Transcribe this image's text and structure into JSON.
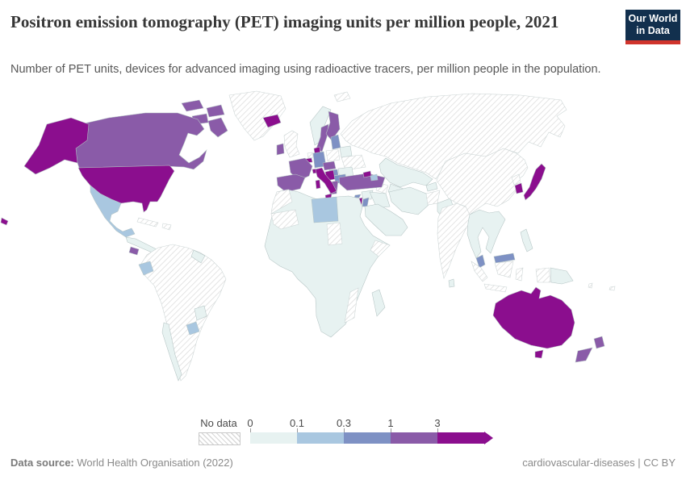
{
  "header": {
    "title": "Positron emission tomography (PET) imaging units per million people, 2021",
    "subtitle": "Number of PET units, devices for advanced imaging using radioactive tracers, per million people in the population.",
    "logo": {
      "line1": "Our World",
      "line2": "in Data"
    }
  },
  "colors": {
    "logo_navy": "#12304e",
    "logo_red": "#d0342c",
    "map_border": "#b5c4c4",
    "hatch_line": "#d9d9d9",
    "title_text": "#373737",
    "subtitle_text": "#575757",
    "footer_text": "#8a8a8a",
    "legend_label": "#4a4a4a"
  },
  "chart_data": {
    "type": "choropleth",
    "title": "Positron emission tomography (PET) imaging units per million people, 2021",
    "year": 2021,
    "unit": "PET imaging units per million people",
    "legend": {
      "no_data_label": "No data",
      "tick_labels": [
        "0",
        "0.1",
        "0.3",
        "1",
        "3"
      ],
      "bins": [
        {
          "label": "0-0.1",
          "color": "#e7f2f1"
        },
        {
          "label": "0.1-0.3",
          "color": "#a9c7e0"
        },
        {
          "label": "0.3-1",
          "color": "#7e91c4"
        },
        {
          "label": "1-3",
          "color": "#8a5ba8"
        },
        {
          "label": "3+",
          "color": "#8b0e8e"
        }
      ],
      "position": "bottom-center"
    },
    "regions": [
      {
        "id": "usa",
        "bin": 4
      },
      {
        "id": "alaska",
        "bin": 4
      },
      {
        "id": "hawaii",
        "bin": 4
      },
      {
        "id": "canada",
        "bin": 3
      },
      {
        "id": "arctic-1",
        "bin": 3
      },
      {
        "id": "arctic-2",
        "bin": 3
      },
      {
        "id": "arctic-3",
        "bin": 3
      },
      {
        "id": "baffin",
        "bin": 3
      },
      {
        "id": "greenland",
        "bin": "nd"
      },
      {
        "id": "svalbard",
        "bin": "nd"
      },
      {
        "id": "mexico",
        "bin": 1
      },
      {
        "id": "central-america",
        "bin": 0
      },
      {
        "id": "costa-rica-panama",
        "bin": 3
      },
      {
        "id": "cuba",
        "bin": "nd"
      },
      {
        "id": "hispaniola",
        "bin": "nd"
      },
      {
        "id": "south-america",
        "bin": "nd"
      },
      {
        "id": "guyanas",
        "bin": 0
      },
      {
        "id": "ecuador",
        "bin": 1
      },
      {
        "id": "chile",
        "bin": 0
      },
      {
        "id": "paraguay",
        "bin": 0
      },
      {
        "id": "uruguay",
        "bin": 1
      },
      {
        "id": "iceland",
        "bin": 4
      },
      {
        "id": "norway",
        "bin": 0
      },
      {
        "id": "sweden",
        "bin": 3
      },
      {
        "id": "finland",
        "bin": 3
      },
      {
        "id": "denmark",
        "bin": 4
      },
      {
        "id": "uk",
        "bin": "nd"
      },
      {
        "id": "ireland",
        "bin": 3
      },
      {
        "id": "netherlands",
        "bin": "nd"
      },
      {
        "id": "belgium",
        "bin": 4
      },
      {
        "id": "germany",
        "bin": 2
      },
      {
        "id": "poland",
        "bin": "nd"
      },
      {
        "id": "baltics",
        "bin": 2
      },
      {
        "id": "belarus",
        "bin": 0
      },
      {
        "id": "ukraine",
        "bin": "nd"
      },
      {
        "id": "france",
        "bin": 3
      },
      {
        "id": "switzerland",
        "bin": 4
      },
      {
        "id": "austria-czechia",
        "bin": 3
      },
      {
        "id": "hungary",
        "bin": 2
      },
      {
        "id": "romania",
        "bin": 0
      },
      {
        "id": "balkans",
        "bin": 4
      },
      {
        "id": "bulgaria",
        "bin": 2
      },
      {
        "id": "greece",
        "bin": 3
      },
      {
        "id": "italy",
        "bin": 4
      },
      {
        "id": "sicily",
        "bin": 4
      },
      {
        "id": "sardinia",
        "bin": 4
      },
      {
        "id": "iberia",
        "bin": 3
      },
      {
        "id": "turkey",
        "bin": 3
      },
      {
        "id": "cyprus",
        "bin": 2
      },
      {
        "id": "georgia",
        "bin": 4
      },
      {
        "id": "azerbaijan",
        "bin": 1
      },
      {
        "id": "russia",
        "bin": "nd"
      },
      {
        "id": "kazakhstan",
        "bin": 0
      },
      {
        "id": "uzbekistan",
        "bin": 0
      },
      {
        "id": "turkmenistan",
        "bin": "nd"
      },
      {
        "id": "kyrgyzstan",
        "bin": 0
      },
      {
        "id": "syria",
        "bin": 0
      },
      {
        "id": "israel",
        "bin": 4
      },
      {
        "id": "jordan",
        "bin": 2
      },
      {
        "id": "iraq",
        "bin": 0
      },
      {
        "id": "arabia",
        "bin": 0
      },
      {
        "id": "iran",
        "bin": 0
      },
      {
        "id": "afghanistan",
        "bin": "nd"
      },
      {
        "id": "pakistan",
        "bin": 0
      },
      {
        "id": "india",
        "bin": "nd"
      },
      {
        "id": "sri-lanka",
        "bin": 0
      },
      {
        "id": "bangladesh",
        "bin": 0
      },
      {
        "id": "china-mongolia",
        "bin": "nd"
      },
      {
        "id": "north-korea",
        "bin": "nd"
      },
      {
        "id": "south-korea",
        "bin": 4
      },
      {
        "id": "japan",
        "bin": 4
      },
      {
        "id": "indochina",
        "bin": 0
      },
      {
        "id": "malaysia-peninsula",
        "bin": 2
      },
      {
        "id": "malaysia-borneo",
        "bin": 2
      },
      {
        "id": "sumatra",
        "bin": "nd"
      },
      {
        "id": "borneo",
        "bin": "nd"
      },
      {
        "id": "java",
        "bin": "nd"
      },
      {
        "id": "sulawesi",
        "bin": "nd"
      },
      {
        "id": "west-papua",
        "bin": "nd"
      },
      {
        "id": "png",
        "bin": 0
      },
      {
        "id": "philippines",
        "bin": 0
      },
      {
        "id": "africa",
        "bin": 0
      },
      {
        "id": "morocco",
        "bin": "nd"
      },
      {
        "id": "sahel",
        "bin": "nd"
      },
      {
        "id": "libya",
        "bin": 1
      },
      {
        "id": "chad",
        "bin": "nd"
      },
      {
        "id": "somalia",
        "bin": "nd"
      },
      {
        "id": "mozambique",
        "bin": "nd"
      },
      {
        "id": "madagascar",
        "bin": 0
      },
      {
        "id": "australia",
        "bin": 4
      },
      {
        "id": "tasmania",
        "bin": 4
      },
      {
        "id": "nz-north",
        "bin": 3
      },
      {
        "id": "nz-south",
        "bin": 3
      },
      {
        "id": "fiji",
        "bin": "nd"
      },
      {
        "id": "vanuatu",
        "bin": "nd"
      }
    ]
  },
  "footer": {
    "source_label": "Data source:",
    "source": " World Health Organisation (2022)",
    "note": "cardiovascular-diseases | CC BY"
  }
}
